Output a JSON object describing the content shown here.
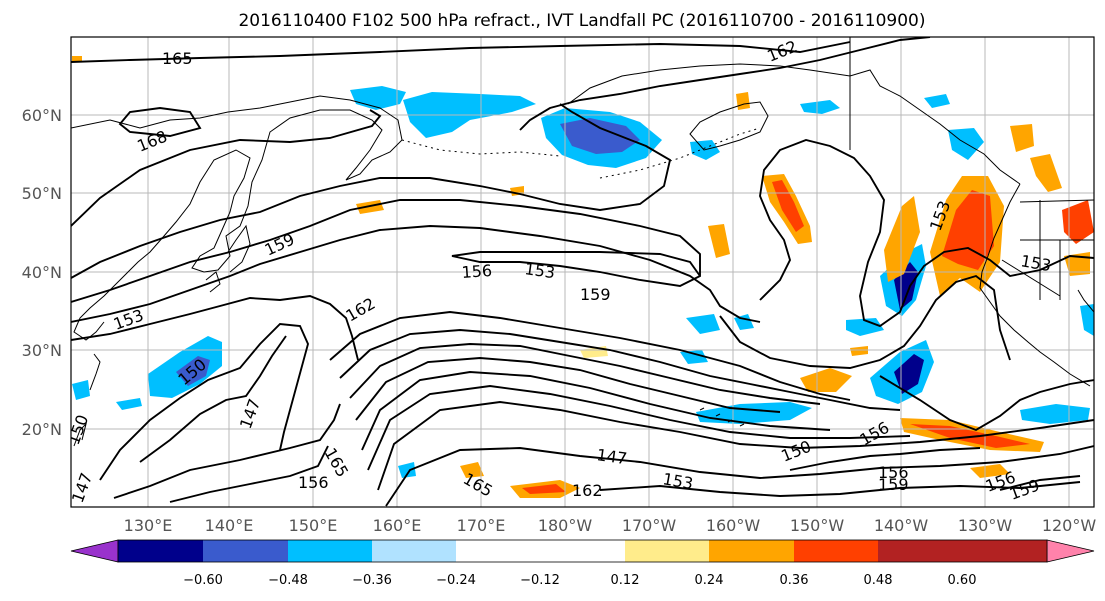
{
  "title": "2016110400 F102 500 hPa refract., IVT Landfall PC (2016110700 - 2016110900)",
  "latitude_labels": [
    "60°N",
    "50°N",
    "40°N",
    "30°N",
    "20°N"
  ],
  "longitude_labels": [
    "130°E",
    "140°E",
    "150°E",
    "160°E",
    "170°E",
    "180°W",
    "170°W",
    "160°W",
    "150°W",
    "140°W",
    "130°W",
    "120°W"
  ],
  "contour_labels": [
    "165",
    "162",
    "168",
    "159",
    "156",
    "153",
    "159",
    "162",
    "153",
    "150",
    "147",
    "156",
    "165",
    "162",
    "147",
    "153",
    "150",
    "156",
    "156",
    "159",
    "156",
    "159",
    "153",
    "150",
    "147",
    "165",
    "153"
  ],
  "colorbar": {
    "tick_labels": [
      "−0.60",
      "−0.48",
      "−0.36",
      "−0.24",
      "−0.12",
      "0.12",
      "0.24",
      "0.36",
      "0.48",
      "0.60"
    ],
    "colors": [
      "#9932cc",
      "#00008b",
      "#3a5bcd",
      "#00bfff",
      "#b0e2ff",
      "#ffffff",
      "#ffec8b",
      "#ffa500",
      "#ff4000",
      "#b22222",
      "#ff82ab"
    ]
  }
}
